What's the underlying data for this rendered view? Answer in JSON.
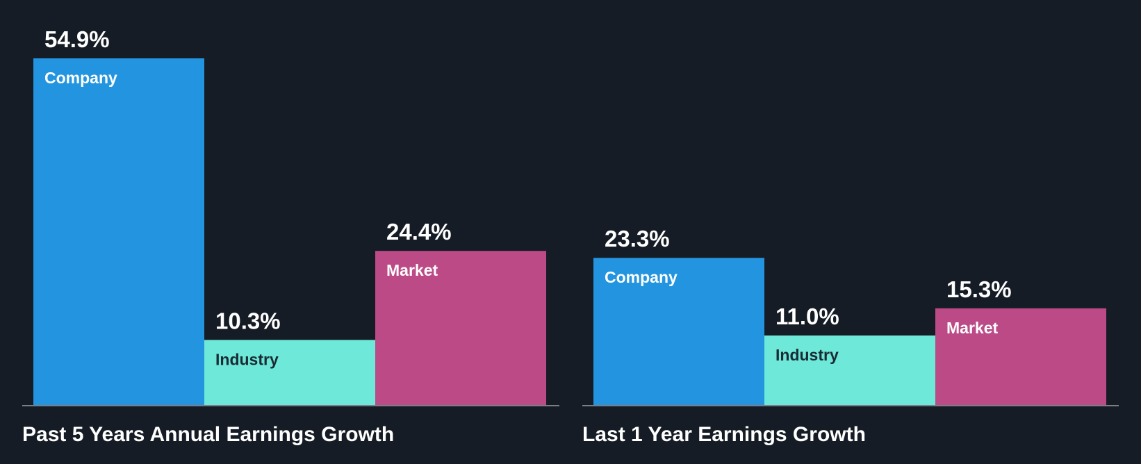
{
  "colors": {
    "background": "#161c25",
    "axis": "#7a7f87",
    "label_light": "#ffffff",
    "label_dark": "#1a2b35"
  },
  "chart_data": [
    {
      "type": "bar",
      "title": "Past 5 Years Annual Earnings Growth",
      "unit": "%",
      "categories": [
        "Company",
        "Industry",
        "Market"
      ],
      "values": [
        54.9,
        10.3,
        24.4
      ],
      "value_labels": [
        "54.9%",
        "10.3%",
        "24.4%"
      ],
      "colors": [
        "#2394df",
        "#6ee8d8",
        "#bb4a87"
      ],
      "ylim": [
        0,
        54.9
      ]
    },
    {
      "type": "bar",
      "title": "Last 1 Year Earnings Growth",
      "unit": "%",
      "categories": [
        "Company",
        "Industry",
        "Market"
      ],
      "values": [
        23.3,
        11.0,
        15.3
      ],
      "value_labels": [
        "23.3%",
        "11.0%",
        "15.3%"
      ],
      "colors": [
        "#2394df",
        "#6ee8d8",
        "#bb4a87"
      ],
      "ylim": [
        0,
        54.9
      ]
    }
  ]
}
